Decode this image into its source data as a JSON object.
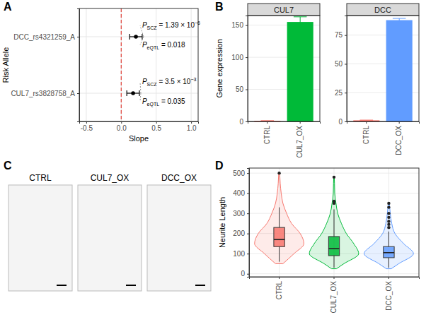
{
  "chart_data": [
    {
      "panel": "A",
      "type": "forest",
      "categories": [
        "DCC_rs4321259_A",
        "CUL7_rs3828758_A"
      ],
      "values": [
        0.21,
        0.17
      ],
      "ci_low": [
        0.12,
        0.08
      ],
      "ci_high": [
        0.3,
        0.26
      ],
      "xlim": [
        -0.6,
        1.1
      ],
      "xticks": [
        {
          "value": -0.5,
          "label": "-0.5"
        },
        {
          "value": 0,
          "label": "0.0"
        },
        0.5,
        {
          "value": 1,
          "label": "1.0"
        }
      ],
      "x_label": "Slope",
      "y_label": "Risk Allele",
      "reference_line": 0,
      "grid": true,
      "annotations": [
        [
          {
            "symbol": "P",
            "subscript": "SCZ",
            "text": " = 1.39 × 10",
            "exponent": "−6"
          },
          {
            "symbol": "P",
            "subscript": "eQTL",
            "text": " = 0.018"
          }
        ],
        [
          {
            "symbol": "P",
            "subscript": "SCZ",
            "text": " = 3.5 × 10",
            "exponent": "−3"
          },
          {
            "symbol": "P",
            "subscript": "eQTL",
            "text": " = 0.035"
          }
        ]
      ]
    },
    {
      "panel": "B",
      "type": "bar",
      "y_label": "Gene expression",
      "facets": [
        {
          "title": "CUL7",
          "categories": [
            "CTRL",
            "CUL7_OX"
          ],
          "values": [
            1,
            155
          ],
          "errors": [
            0.3,
            8
          ],
          "colors": [
            "#F8766D",
            "#00BA38"
          ],
          "ylim": [
            0,
            165
          ],
          "yticks": [
            0,
            50,
            100,
            150
          ]
        },
        {
          "title": "DCC",
          "categories": [
            "CTRL",
            "DCC_OX"
          ],
          "values": [
            1,
            88
          ],
          "errors": [
            0.2,
            1.5
          ],
          "colors": [
            "#F8766D",
            "#619CFF"
          ],
          "ylim": [
            0,
            92
          ],
          "yticks": [
            0,
            25,
            50,
            75
          ]
        }
      ]
    },
    {
      "panel": "C",
      "type": "image",
      "images": [
        {
          "title": "CTRL"
        },
        {
          "title": "CUL7_OX"
        },
        {
          "title": "DCC_OX"
        }
      ]
    },
    {
      "panel": "D",
      "type": "violin",
      "y_label": "Neurite Length",
      "categories": [
        "CTRL",
        "CUL7_OX",
        "DCC_OX"
      ],
      "colors": [
        "#F8766D",
        "#00BA38",
        "#619CFF"
      ],
      "ylim": [
        -15,
        525
      ],
      "yticks": [
        0,
        100,
        200,
        300,
        400,
        500
      ],
      "grid": true,
      "boxes": [
        {
          "min": 60,
          "q1": 135,
          "median": 170,
          "q3": 230,
          "max": 330,
          "outliers": [
            500
          ]
        },
        {
          "min": 30,
          "q1": 90,
          "median": 125,
          "q3": 185,
          "max": 320,
          "outliers": [
            350,
            360,
            480
          ]
        },
        {
          "min": 30,
          "q1": 80,
          "median": 105,
          "q3": 135,
          "max": 210,
          "outliers": [
            230,
            245,
            260,
            280,
            300,
            330,
            350
          ]
        }
      ],
      "violins": [
        {
          "y": [
            50,
            100,
            150,
            200,
            250,
            300,
            350,
            400,
            450,
            500
          ],
          "width": [
            0.15,
            0.6,
            1.0,
            0.85,
            0.5,
            0.3,
            0.15,
            0.08,
            0.04,
            0.02
          ]
        },
        {
          "y": [
            25,
            50,
            100,
            150,
            200,
            250,
            300,
            350,
            400,
            450,
            480
          ],
          "width": [
            0.1,
            0.4,
            1.0,
            0.8,
            0.5,
            0.3,
            0.15,
            0.08,
            0.03,
            0.02,
            0.01
          ]
        },
        {
          "y": [
            25,
            50,
            100,
            150,
            200,
            250,
            300,
            355
          ],
          "width": [
            0.1,
            0.4,
            1.0,
            0.6,
            0.25,
            0.12,
            0.06,
            0.02
          ]
        }
      ]
    }
  ]
}
